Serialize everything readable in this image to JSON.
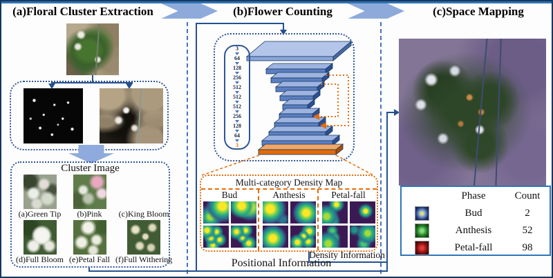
{
  "header": {
    "sections": [
      {
        "label": "(a)Floral Cluster Extraction"
      },
      {
        "label": "(b)Flower Counting"
      },
      {
        "label": "(c)Space Mapping"
      }
    ]
  },
  "panel_a": {
    "cluster_box_title": "Cluster Image",
    "stages": [
      {
        "label": "(a)Green Tip"
      },
      {
        "label": "(b)Pink"
      },
      {
        "label": "(c)King Bloom"
      },
      {
        "label": "(d)Full Bloom"
      },
      {
        "label": "(e)Petal Fall"
      },
      {
        "label": "(f)Full Withering"
      }
    ]
  },
  "panel_b": {
    "layer_channels": [
      "3",
      "64",
      "128",
      "256",
      "512",
      "512",
      "512",
      "256",
      "128",
      "64",
      "3"
    ],
    "density_map": {
      "title": "Multi-category Density Map",
      "groups": [
        {
          "label": "Bud"
        },
        {
          "label": "Anthesis"
        },
        {
          "label": "Petal-fall"
        }
      ]
    },
    "labels": {
      "density": "Density Information",
      "positional": "Positional Information"
    }
  },
  "panel_c": {
    "table": {
      "headers": [
        "Phase",
        "Count"
      ],
      "rows": [
        {
          "phase": "Bud",
          "count": "2",
          "chip_color": "#20356e"
        },
        {
          "phase": "Anthesis",
          "count": "52",
          "chip_color": "#2b8a2b"
        },
        {
          "phase": "Petal-fall",
          "count": "98",
          "chip_color": "#8e1212"
        }
      ]
    }
  },
  "colors": {
    "chevron_blue": "#8eaadb",
    "frame_navy": "#17365d",
    "connector_blue": "#24508f",
    "dashed_separator": "#4472c4",
    "orange_accent": "#e36c0a"
  }
}
